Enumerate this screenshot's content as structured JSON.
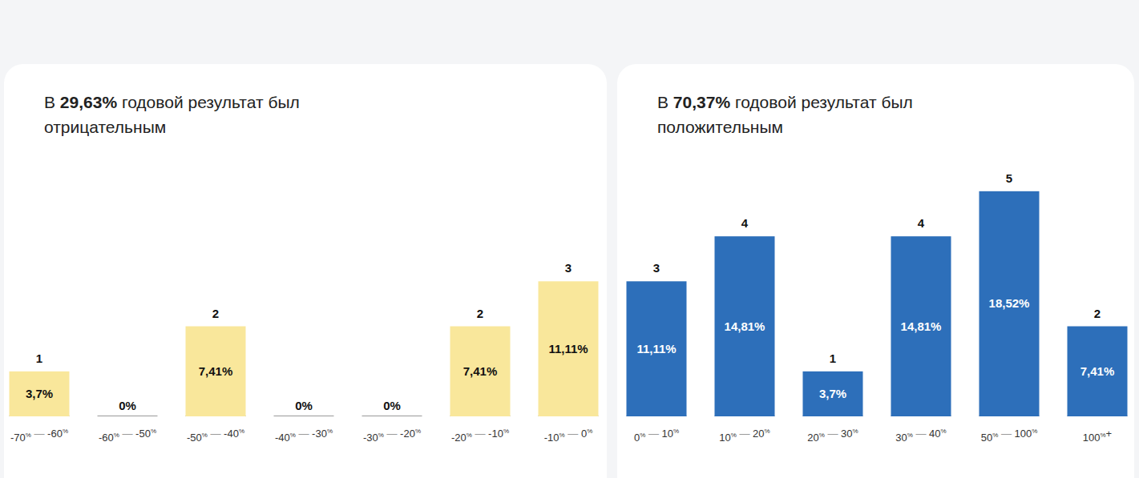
{
  "chart_data": [
    {
      "type": "bar",
      "title": "В 29,63% годовой результат был отрицательным",
      "categories": [
        "-70% — -60%",
        "-60% — -50%",
        "-50% — -40%",
        "-40% — -30%",
        "-30% — -20%",
        "-20% — -10%",
        "-10% — 0%"
      ],
      "values": [
        3.7,
        0,
        7.41,
        0,
        0,
        7.41,
        11.11
      ],
      "value_labels": [
        "3,7%",
        "0%",
        "7,41%",
        "0%",
        "0%",
        "7,41%",
        "11,11%"
      ],
      "counts": [
        1,
        null,
        2,
        null,
        null,
        2,
        3
      ],
      "color": "#f9e79b",
      "ylim": [
        0,
        22
      ],
      "data_labels": true,
      "tick_labels": "x"
    },
    {
      "type": "bar",
      "title": "В 70,37% годовой результат был положительным",
      "categories": [
        "0% — 10%",
        "10% — 20%",
        "20% — 30%",
        "30% — 40%",
        "50% — 100%",
        "100%+"
      ],
      "values": [
        11.11,
        14.81,
        3.7,
        14.81,
        18.52,
        7.41
      ],
      "value_labels": [
        "11,11%",
        "14,81%",
        "3,7%",
        "14,81%",
        "18,52%",
        "7,41%"
      ],
      "counts": [
        3,
        4,
        1,
        4,
        5,
        2
      ],
      "color": "#2d6fba",
      "ylim": [
        0,
        22
      ],
      "data_labels": true,
      "tick_labels": "x"
    }
  ]
}
